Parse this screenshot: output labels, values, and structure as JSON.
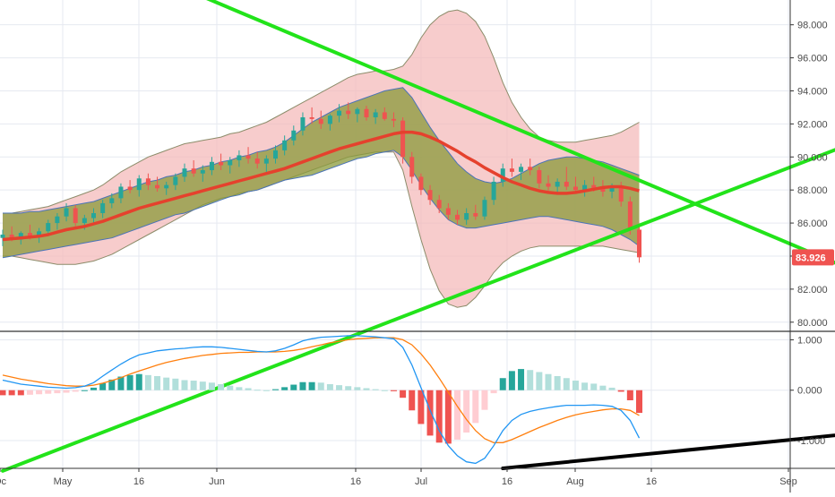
{
  "colors": {
    "background": "#ffffff",
    "grid": "#e6e9f0",
    "pane_divider": "#333333",
    "axis_text": "#4a4a4a",
    "candle_up": "#26a69a",
    "candle_down": "#ef5350",
    "ma_line": "#e5412d",
    "inner_band_fill": "#8a9a3a",
    "inner_band_line": "#4a73b8",
    "outer_band_fill": "#f4b6b6",
    "outer_band_line": "#8c8c6a",
    "trendline": "#22e31a",
    "support_line": "#000000",
    "macd_line": "#2196f3",
    "signal_line": "#ff7f0e",
    "hist_pos_strong": "#26a69a",
    "hist_pos_weak": "#b2dfdb",
    "hist_neg_strong": "#ef5350",
    "hist_neg_weak": "#ffcdd2",
    "last_price_bg": "#ef5350",
    "last_price_text": "#ffffff"
  },
  "chart_data": [
    {
      "type": "candlestick",
      "pane": "price",
      "ylim": [
        79.5,
        99.5
      ],
      "ytick_values": [
        80,
        82,
        84,
        86,
        88,
        90,
        92,
        94,
        96,
        98
      ],
      "ytick_labels": [
        "80.000",
        "82.000",
        "84.000",
        "86.000",
        "88.000",
        "90.000",
        "92.000",
        "94.000",
        "96.000",
        "98.000"
      ],
      "last_price": "83.926",
      "x_tick_labels": [
        "May",
        "16",
        "Jun",
        "16",
        "Jul",
        "16",
        "Aug",
        "16",
        "Sep",
        "Oc"
      ],
      "candles": [
        [
          85.1,
          85.6,
          84.6,
          85.3
        ],
        [
          85.3,
          85.8,
          84.9,
          85.0
        ],
        [
          85.0,
          85.5,
          84.7,
          85.4
        ],
        [
          85.4,
          85.9,
          85.0,
          85.2
        ],
        [
          85.2,
          85.7,
          84.8,
          85.5
        ],
        [
          85.5,
          86.2,
          85.2,
          86.0
        ],
        [
          86.0,
          86.6,
          85.6,
          86.4
        ],
        [
          86.4,
          87.2,
          86.1,
          86.9
        ],
        [
          86.9,
          87.1,
          85.8,
          86.0
        ],
        [
          86.0,
          86.5,
          85.6,
          86.3
        ],
        [
          86.3,
          86.9,
          86.0,
          86.6
        ],
        [
          86.6,
          87.4,
          86.3,
          87.2
        ],
        [
          87.2,
          87.8,
          86.9,
          87.5
        ],
        [
          87.5,
          88.4,
          87.2,
          88.2
        ],
        [
          88.2,
          88.6,
          87.8,
          88.0
        ],
        [
          88.0,
          88.9,
          87.6,
          88.7
        ],
        [
          88.7,
          89.0,
          88.0,
          88.3
        ],
        [
          88.3,
          88.8,
          87.9,
          88.1
        ],
        [
          88.1,
          88.5,
          87.7,
          88.3
        ],
        [
          88.3,
          89.0,
          88.0,
          88.8
        ],
        [
          88.8,
          89.6,
          88.5,
          89.3
        ],
        [
          89.3,
          89.8,
          88.8,
          89.0
        ],
        [
          89.0,
          89.5,
          88.5,
          89.2
        ],
        [
          89.2,
          90.0,
          88.9,
          89.7
        ],
        [
          89.7,
          90.2,
          89.2,
          89.5
        ],
        [
          89.5,
          90.0,
          89.0,
          89.8
        ],
        [
          89.8,
          90.4,
          89.4,
          90.1
        ],
        [
          90.1,
          90.6,
          89.6,
          89.9
        ],
        [
          89.9,
          90.3,
          89.3,
          89.6
        ],
        [
          89.6,
          90.1,
          89.1,
          89.9
        ],
        [
          89.9,
          90.7,
          89.6,
          90.4
        ],
        [
          90.4,
          91.3,
          90.1,
          91.0
        ],
        [
          91.0,
          91.9,
          90.7,
          91.6
        ],
        [
          91.6,
          92.7,
          91.3,
          92.4
        ],
        [
          92.4,
          93.0,
          92.0,
          92.3
        ],
        [
          92.3,
          92.8,
          91.7,
          92.0
        ],
        [
          92.0,
          92.6,
          91.6,
          92.5
        ],
        [
          92.5,
          93.2,
          92.1,
          92.8
        ],
        [
          92.8,
          93.3,
          92.3,
          92.6
        ],
        [
          92.6,
          93.0,
          92.1,
          92.9
        ],
        [
          92.9,
          93.1,
          92.2,
          92.4
        ],
        [
          92.4,
          92.9,
          92.0,
          92.7
        ],
        [
          92.7,
          93.0,
          92.2,
          92.3
        ],
        [
          92.3,
          92.7,
          91.8,
          92.2
        ],
        [
          92.2,
          92.4,
          89.6,
          90.0
        ],
        [
          90.0,
          90.3,
          88.4,
          88.8
        ],
        [
          88.8,
          89.0,
          87.7,
          88.0
        ],
        [
          88.0,
          88.3,
          87.1,
          87.4
        ],
        [
          87.4,
          87.7,
          86.6,
          86.9
        ],
        [
          86.9,
          87.2,
          86.2,
          86.5
        ],
        [
          86.5,
          86.8,
          85.9,
          86.2
        ],
        [
          86.2,
          86.9,
          85.9,
          86.6
        ],
        [
          86.6,
          87.1,
          86.2,
          86.4
        ],
        [
          86.4,
          87.6,
          86.2,
          87.4
        ],
        [
          87.4,
          88.8,
          87.1,
          88.5
        ],
        [
          88.5,
          89.6,
          88.2,
          89.3
        ],
        [
          89.3,
          89.9,
          88.8,
          89.1
        ],
        [
          89.1,
          89.6,
          88.6,
          89.4
        ],
        [
          89.4,
          89.9,
          88.9,
          89.2
        ],
        [
          89.2,
          89.4,
          88.1,
          88.4
        ],
        [
          88.4,
          88.9,
          87.9,
          88.2
        ],
        [
          88.2,
          88.7,
          87.8,
          88.5
        ],
        [
          88.5,
          89.4,
          88.0,
          88.2
        ],
        [
          88.2,
          88.8,
          87.8,
          88.0
        ],
        [
          88.0,
          88.6,
          87.6,
          88.3
        ],
        [
          88.3,
          88.8,
          87.9,
          88.1
        ],
        [
          88.1,
          88.6,
          87.6,
          87.9
        ],
        [
          87.9,
          88.4,
          87.5,
          88.2
        ],
        [
          88.2,
          88.5,
          87.0,
          87.3
        ],
        [
          87.3,
          87.6,
          85.3,
          85.6
        ],
        [
          85.6,
          85.8,
          83.6,
          83.926
        ]
      ],
      "moving_average": [
        85.0,
        85.05,
        85.1,
        85.15,
        85.2,
        85.3,
        85.45,
        85.6,
        85.7,
        85.8,
        85.95,
        86.1,
        86.3,
        86.5,
        86.7,
        86.9,
        87.05,
        87.2,
        87.35,
        87.5,
        87.65,
        87.8,
        87.95,
        88.1,
        88.25,
        88.4,
        88.55,
        88.7,
        88.85,
        89.0,
        89.15,
        89.3,
        89.5,
        89.7,
        89.9,
        90.1,
        90.3,
        90.5,
        90.65,
        90.8,
        90.95,
        91.1,
        91.25,
        91.4,
        91.5,
        91.5,
        91.4,
        91.2,
        90.95,
        90.65,
        90.35,
        90.0,
        89.7,
        89.35,
        89.05,
        88.75,
        88.5,
        88.3,
        88.1,
        87.95,
        87.85,
        87.8,
        87.8,
        87.85,
        87.95,
        88.05,
        88.15,
        88.2,
        88.2,
        88.1,
        87.95
      ],
      "inner_band_upper": [
        86.6,
        86.6,
        86.6,
        86.7,
        86.7,
        86.8,
        86.9,
        87.0,
        87.1,
        87.2,
        87.3,
        87.5,
        87.7,
        87.9,
        88.1,
        88.3,
        88.5,
        88.6,
        88.8,
        88.9,
        89.1,
        89.2,
        89.4,
        89.5,
        89.7,
        89.8,
        90.0,
        90.1,
        90.3,
        90.4,
        90.6,
        90.9,
        91.3,
        91.7,
        92.1,
        92.4,
        92.7,
        93.0,
        93.2,
        93.4,
        93.6,
        93.8,
        94.0,
        94.1,
        94.2,
        93.6,
        92.7,
        91.8,
        91.0,
        90.3,
        89.6,
        89.1,
        88.7,
        88.5,
        88.4,
        88.5,
        88.7,
        89.0,
        89.3,
        89.6,
        89.8,
        89.9,
        90.0,
        90.0,
        89.9,
        89.8,
        89.7,
        89.5,
        89.3,
        89.1,
        88.9
      ],
      "inner_band_lower": [
        83.9,
        84.0,
        84.1,
        84.2,
        84.3,
        84.4,
        84.5,
        84.6,
        84.7,
        84.8,
        84.9,
        85.0,
        85.1,
        85.3,
        85.5,
        85.7,
        85.9,
        86.1,
        86.3,
        86.5,
        86.6,
        86.8,
        87.0,
        87.2,
        87.4,
        87.6,
        87.7,
        87.9,
        88.0,
        88.2,
        88.4,
        88.6,
        88.7,
        88.8,
        88.9,
        89.1,
        89.3,
        89.5,
        89.7,
        89.9,
        90.0,
        90.2,
        90.3,
        90.4,
        90.0,
        89.2,
        88.3,
        87.5,
        86.8,
        86.2,
        85.9,
        85.7,
        85.7,
        85.8,
        85.9,
        86.0,
        86.1,
        86.2,
        86.3,
        86.4,
        86.4,
        86.3,
        86.2,
        86.1,
        86.0,
        85.9,
        85.8,
        85.6,
        85.3,
        85.0,
        84.6
      ],
      "outer_band_upper": [
        86.6,
        86.6,
        86.7,
        86.8,
        86.9,
        87.0,
        87.2,
        87.4,
        87.6,
        87.8,
        88.0,
        88.3,
        88.7,
        89.1,
        89.4,
        89.7,
        90.0,
        90.2,
        90.4,
        90.6,
        90.8,
        90.9,
        91.0,
        91.1,
        91.2,
        91.4,
        91.5,
        91.7,
        91.9,
        92.1,
        92.4,
        92.7,
        93.0,
        93.3,
        93.6,
        93.9,
        94.2,
        94.5,
        94.8,
        95.0,
        95.1,
        95.2,
        95.2,
        95.3,
        95.5,
        96.2,
        97.2,
        98.0,
        98.5,
        98.8,
        98.9,
        98.7,
        98.2,
        97.3,
        96.0,
        94.5,
        93.3,
        92.4,
        91.7,
        91.2,
        91.0,
        90.9,
        90.9,
        90.9,
        91.0,
        91.1,
        91.2,
        91.3,
        91.5,
        91.8,
        92.1
      ],
      "outer_band_lower": [
        84.0,
        84.0,
        83.9,
        83.8,
        83.7,
        83.6,
        83.5,
        83.5,
        83.5,
        83.6,
        83.7,
        83.9,
        84.1,
        84.4,
        84.7,
        85.0,
        85.3,
        85.6,
        85.9,
        86.2,
        86.5,
        86.8,
        87.1,
        87.3,
        87.5,
        87.6,
        87.8,
        87.9,
        88.0,
        88.2,
        88.4,
        88.6,
        88.8,
        89.0,
        89.2,
        89.4,
        89.6,
        89.8,
        90.0,
        90.1,
        90.2,
        90.3,
        90.3,
        90.3,
        89.2,
        87.0,
        85.0,
        83.2,
        81.9,
        81.1,
        80.9,
        81.0,
        81.5,
        82.2,
        83.0,
        83.6,
        84.0,
        84.3,
        84.5,
        84.6,
        84.6,
        84.6,
        84.6,
        84.6,
        84.6,
        84.6,
        84.6,
        84.5,
        84.4,
        84.3,
        84.2
      ],
      "trendlines": [
        {
          "from": [
            0,
            104.8
          ],
          "to": [
            98,
            82.1
          ]
        },
        {
          "from": [
            0,
            71.0
          ],
          "to": [
            98,
            91.8
          ]
        }
      ]
    },
    {
      "type": "macd",
      "pane": "indicator",
      "ylim": [
        -1.55,
        1.15
      ],
      "ytick_values": [
        1,
        0,
        -1
      ],
      "ytick_labels": [
        "1.000",
        "0.000",
        "-1.000"
      ],
      "macd": [
        0.2,
        0.16,
        0.12,
        0.1,
        0.08,
        0.06,
        0.05,
        0.04,
        0.05,
        0.08,
        0.15,
        0.28,
        0.4,
        0.52,
        0.62,
        0.7,
        0.74,
        0.78,
        0.8,
        0.82,
        0.83,
        0.85,
        0.86,
        0.86,
        0.85,
        0.83,
        0.81,
        0.79,
        0.77,
        0.76,
        0.78,
        0.83,
        0.9,
        0.98,
        1.02,
        1.05,
        1.06,
        1.07,
        1.08,
        1.08,
        1.07,
        1.06,
        1.04,
        1.02,
        0.85,
        0.5,
        0.05,
        -0.4,
        -0.8,
        -1.1,
        -1.3,
        -1.42,
        -1.45,
        -1.35,
        -1.1,
        -0.8,
        -0.6,
        -0.48,
        -0.42,
        -0.38,
        -0.35,
        -0.32,
        -0.3,
        -0.3,
        -0.3,
        -0.29,
        -0.3,
        -0.32,
        -0.4,
        -0.6,
        -0.95
      ],
      "signal": [
        0.3,
        0.26,
        0.22,
        0.19,
        0.16,
        0.13,
        0.11,
        0.09,
        0.08,
        0.08,
        0.1,
        0.14,
        0.19,
        0.25,
        0.32,
        0.38,
        0.44,
        0.5,
        0.55,
        0.59,
        0.63,
        0.66,
        0.69,
        0.71,
        0.73,
        0.74,
        0.75,
        0.75,
        0.76,
        0.76,
        0.76,
        0.77,
        0.79,
        0.82,
        0.86,
        0.9,
        0.94,
        0.97,
        1.0,
        1.02,
        1.03,
        1.04,
        1.04,
        1.04,
        1.0,
        0.9,
        0.72,
        0.5,
        0.24,
        -0.04,
        -0.32,
        -0.58,
        -0.8,
        -0.96,
        -1.04,
        -1.04,
        -0.98,
        -0.9,
        -0.82,
        -0.74,
        -0.67,
        -0.6,
        -0.54,
        -0.49,
        -0.45,
        -0.42,
        -0.39,
        -0.37,
        -0.37,
        -0.4,
        -0.5
      ],
      "histogram": [
        -0.1,
        -0.1,
        -0.1,
        -0.09,
        -0.08,
        -0.07,
        -0.06,
        -0.05,
        -0.03,
        0.0,
        0.05,
        0.14,
        0.21,
        0.27,
        0.3,
        0.32,
        0.3,
        0.28,
        0.25,
        0.23,
        0.2,
        0.19,
        0.17,
        0.15,
        0.12,
        0.09,
        0.06,
        0.04,
        0.01,
        0.0,
        0.02,
        0.06,
        0.11,
        0.16,
        0.16,
        0.15,
        0.12,
        0.1,
        0.08,
        0.06,
        0.04,
        0.02,
        0.0,
        -0.02,
        -0.15,
        -0.4,
        -0.67,
        -0.9,
        -1.04,
        -1.06,
        -0.98,
        -0.84,
        -0.65,
        -0.39,
        -0.06,
        0.24,
        0.38,
        0.42,
        0.4,
        0.36,
        0.32,
        0.28,
        0.24,
        0.19,
        0.15,
        0.13,
        0.09,
        0.05,
        -0.03,
        -0.2,
        -0.45
      ],
      "support_line": {
        "from": [
          55,
          -1.55
        ],
        "to": [
          98,
          -0.78
        ]
      }
    }
  ]
}
